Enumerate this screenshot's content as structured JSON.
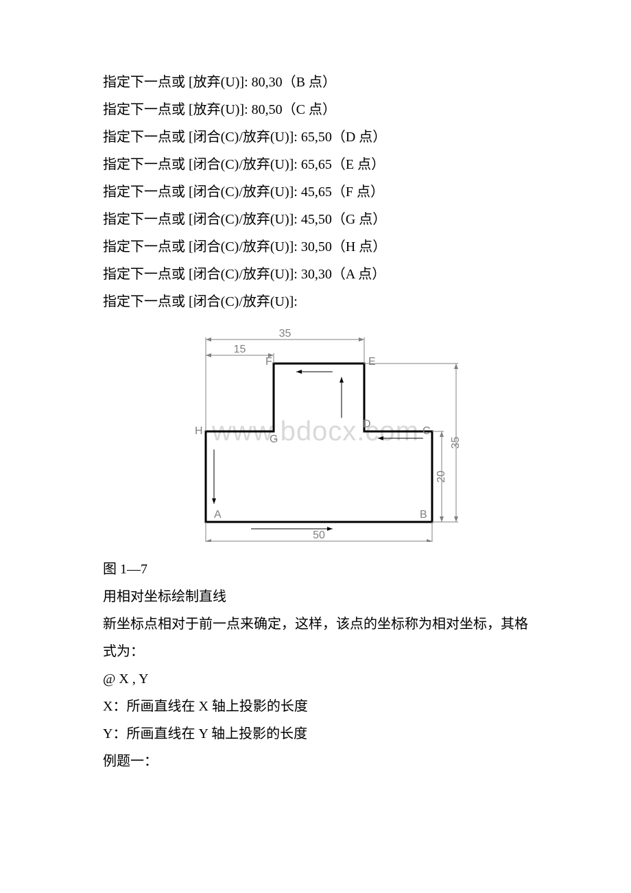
{
  "lines": [
    "指定下一点或 [放弃(U)]: 80,30（B 点）",
    "指定下一点或 [放弃(U)]: 80,50（C 点）",
    "指定下一点或 [闭合(C)/放弃(U)]: 65,50（D 点）",
    "指定下一点或 [闭合(C)/放弃(U)]: 65,65（E 点）",
    "指定下一点或 [闭合(C)/放弃(U)]: 45,65（F 点）",
    "指定下一点或 [闭合(C)/放弃(U)]: 45,50（G 点）",
    "指定下一点或 [闭合(C)/放弃(U)]: 30,50（H 点）",
    "指定下一点或 [闭合(C)/放弃(U)]: 30,30（A 点）",
    "指定下一点或 [闭合(C)/放弃(U)]:"
  ],
  "caption": " 图 1—7",
  "after": [
    "用相对坐标绘制直线",
    "新坐标点相对于前一点来确定，这样，该点的坐标称为相对坐标，其格式为：",
    "@ X , Y",
    "X：所画直线在 X 轴上投影的长度",
    "Y：所画直线在 Y 轴上投影的长度",
    "例题一："
  ],
  "watermark": {
    "text": "www.bdocx.com",
    "color": "#d9d9d9",
    "fontsize": 40
  },
  "figure": {
    "type": "diagram",
    "background_color": "#ffffff",
    "shape_stroke": "#000000",
    "shape_stroke_width": 3,
    "dim_stroke": "#808080",
    "dim_stroke_width": 1,
    "arrow_stroke": "#000000",
    "arrow_stroke_width": 1,
    "label_fontfamily": "Arial, sans-serif",
    "label_fontsize": 16,
    "label_color": "#808080",
    "dim_label_color": "#808080",
    "points": {
      "A": [
        30,
        30
      ],
      "B": [
        80,
        30
      ],
      "C": [
        80,
        50
      ],
      "D": [
        65,
        50
      ],
      "E": [
        65,
        65
      ],
      "F": [
        45,
        65
      ],
      "G": [
        45,
        50
      ],
      "H": [
        30,
        50
      ]
    },
    "dimensions": {
      "d35": "35",
      "d15": "15",
      "d50": "50",
      "d35v": "35",
      "d20": "20"
    },
    "letters": {
      "A": "A",
      "B": "B",
      "C": "C",
      "D": "D",
      "E": "E",
      "F": "F",
      "G": "G",
      "H": "H"
    },
    "scale": 6.6
  }
}
